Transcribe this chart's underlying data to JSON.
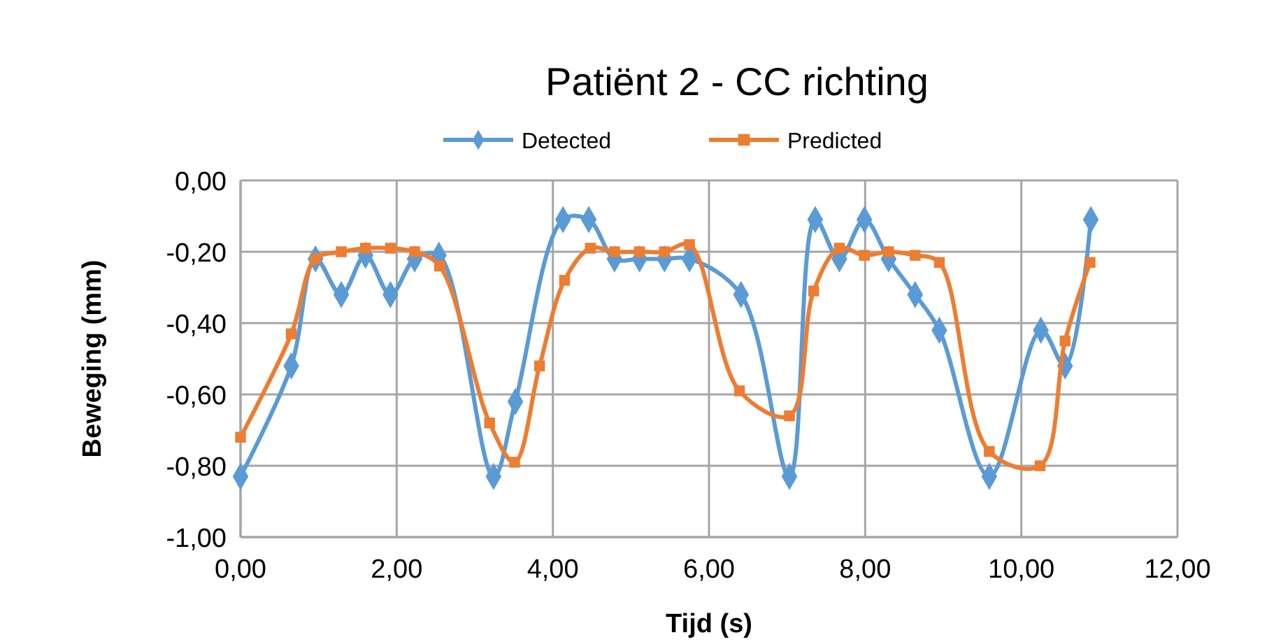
{
  "chart_data": {
    "type": "line",
    "title": "Patiënt 2 - CC richting",
    "xlabel": "Tijd (s)",
    "ylabel": "Beweging (mm)",
    "xlim": [
      0,
      12
    ],
    "xticks": [
      {
        "value": 0,
        "label": "0,00"
      },
      {
        "value": 2,
        "label": "2,00"
      },
      {
        "value": 4,
        "label": "4,00"
      },
      {
        "value": 6,
        "label": "6,00"
      },
      {
        "value": 8,
        "label": "8,00"
      },
      {
        "value": 10,
        "label": "10,00"
      },
      {
        "value": 12,
        "label": "12,00"
      }
    ],
    "ylim": [
      -1,
      0
    ],
    "yticks": [
      {
        "value": -1,
        "label": "-1,00"
      },
      {
        "value": -0.8,
        "label": "-0,80"
      },
      {
        "value": -0.6,
        "label": "-0,60"
      },
      {
        "value": -0.4,
        "label": "-0,40"
      },
      {
        "value": -0.2,
        "label": "-0,20"
      },
      {
        "value": 0,
        "label": "0,00"
      }
    ],
    "grid": true,
    "legend": "top",
    "line_style": "solid",
    "series": [
      {
        "name": "Detected",
        "color": "#5b9bd5",
        "marker": "diamond",
        "x": [
          0.0,
          0.65,
          0.96,
          1.29,
          1.6,
          1.92,
          2.23,
          2.54,
          3.24,
          3.52,
          4.13,
          4.46,
          4.79,
          5.11,
          5.43,
          5.75,
          6.41,
          7.03,
          7.36,
          7.67,
          7.99,
          8.3,
          8.64,
          8.95,
          9.59,
          10.25,
          10.56,
          10.89
        ],
        "values": [
          -0.83,
          -0.52,
          -0.22,
          -0.32,
          -0.21,
          -0.32,
          -0.22,
          -0.21,
          -0.83,
          -0.62,
          -0.11,
          -0.11,
          -0.22,
          -0.22,
          -0.22,
          -0.22,
          -0.32,
          -0.83,
          -0.11,
          -0.22,
          -0.11,
          -0.22,
          -0.32,
          -0.42,
          -0.83,
          -0.42,
          -0.52,
          -0.11
        ]
      },
      {
        "name": "Predicted",
        "color": "#ed7d31",
        "marker": "square",
        "x": [
          0.0,
          0.65,
          0.96,
          1.29,
          1.6,
          1.92,
          2.23,
          2.55,
          3.19,
          3.51,
          3.83,
          4.15,
          4.48,
          4.79,
          5.11,
          5.43,
          5.75,
          6.39,
          7.03,
          7.34,
          7.67,
          7.99,
          8.3,
          8.64,
          8.95,
          9.59,
          10.24,
          10.56,
          10.88
        ],
        "values": [
          -0.72,
          -0.43,
          -0.22,
          -0.2,
          -0.19,
          -0.19,
          -0.2,
          -0.24,
          -0.68,
          -0.79,
          -0.52,
          -0.28,
          -0.19,
          -0.2,
          -0.2,
          -0.2,
          -0.18,
          -0.59,
          -0.66,
          -0.31,
          -0.19,
          -0.21,
          -0.2,
          -0.21,
          -0.23,
          -0.76,
          -0.8,
          -0.45,
          -0.23
        ]
      }
    ]
  }
}
